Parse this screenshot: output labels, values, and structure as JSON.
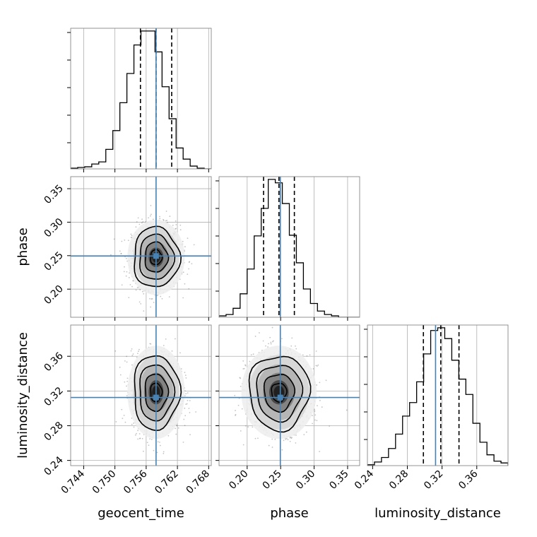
{
  "chart_data": {
    "type": "corner",
    "parameters": [
      "geocent_time",
      "phase",
      "luminosity_distance"
    ],
    "axis_labels": {
      "geocent_time": "geocent_time",
      "phase": "phase",
      "luminosity_distance": "luminosity_distance"
    },
    "ranges": {
      "geocent_time": [
        0.7415,
        0.7685
      ],
      "phase": [
        0.158,
        0.368
      ],
      "luminosity_distance": [
        0.234,
        0.396
      ]
    },
    "ticks": {
      "geocent_time": [
        0.744,
        0.75,
        0.756,
        0.762,
        0.768
      ],
      "phase": [
        0.2,
        0.25,
        0.3,
        0.35
      ],
      "luminosity_distance": [
        0.24,
        0.28,
        0.32,
        0.36
      ]
    },
    "tick_labels": {
      "geocent_time": [
        "0.744",
        "0.750",
        "0.756",
        "0.762",
        "0.768"
      ],
      "phase": [
        "0.20",
        "0.25",
        "0.30",
        "0.35"
      ],
      "luminosity_distance": [
        "0.24",
        "0.28",
        "0.32",
        "0.36"
      ]
    },
    "histograms": {
      "geocent_time": {
        "edges": [
          0.7415,
          0.74285,
          0.7442,
          0.74555,
          0.7469,
          0.74825,
          0.7496,
          0.75095,
          0.7523,
          0.75365,
          0.755,
          0.75635,
          0.7577,
          0.75905,
          0.7604,
          0.76175,
          0.7631,
          0.76445,
          0.7658,
          0.76715,
          0.7685
        ],
        "counts": [
          1,
          2,
          3,
          7,
          10,
          28,
          55,
          95,
          137,
          178,
          198,
          198,
          168,
          118,
          72,
          30,
          14,
          4,
          1,
          0
        ]
      },
      "phase": {
        "edges": [
          0.158,
          0.1685,
          0.179,
          0.1895,
          0.2,
          0.2105,
          0.221,
          0.2315,
          0.242,
          0.2525,
          0.263,
          0.2735,
          0.284,
          0.2945,
          0.305,
          0.3155,
          0.326,
          0.3365,
          0.347,
          0.3575,
          0.368
        ],
        "counts": [
          2,
          4,
          13,
          34,
          70,
          118,
          158,
          200,
          195,
          165,
          119,
          79,
          41,
          20,
          9,
          4,
          2,
          0,
          0,
          0
        ]
      },
      "luminosity_distance": {
        "edges": [
          0.234,
          0.2421,
          0.2502,
          0.2583,
          0.2664,
          0.2745,
          0.2826,
          0.2907,
          0.2988,
          0.3069,
          0.315,
          0.3231,
          0.3312,
          0.3393,
          0.3474,
          0.3555,
          0.3636,
          0.3717,
          0.3798,
          0.3879,
          0.396
        ],
        "counts": [
          1,
          4,
          9,
          19,
          35,
          55,
          70,
          93,
          124,
          150,
          153,
          141,
          117,
          96,
          79,
          47,
          26,
          12,
          5,
          3
        ]
      }
    },
    "quantiles": {
      "geocent_time": [
        0.7549,
        0.7579,
        0.7609
      ],
      "phase": [
        0.2245,
        0.2475,
        0.2705
      ],
      "luminosity_distance": [
        0.2985,
        0.3185,
        0.3395
      ]
    },
    "truths": {
      "geocent_time": 0.7579,
      "phase": 0.2495,
      "luminosity_distance": 0.3125
    },
    "posterior_center": {
      "geocent_time": 0.7579,
      "phase": 0.2475,
      "luminosity_distance": 0.3185
    },
    "posterior_sigma": {
      "geocent_time": 0.0022,
      "phase": 0.0225,
      "luminosity_distance": 0.0215
    },
    "truth_color": "#4682b4",
    "line_color": "#000000",
    "grid": true
  }
}
